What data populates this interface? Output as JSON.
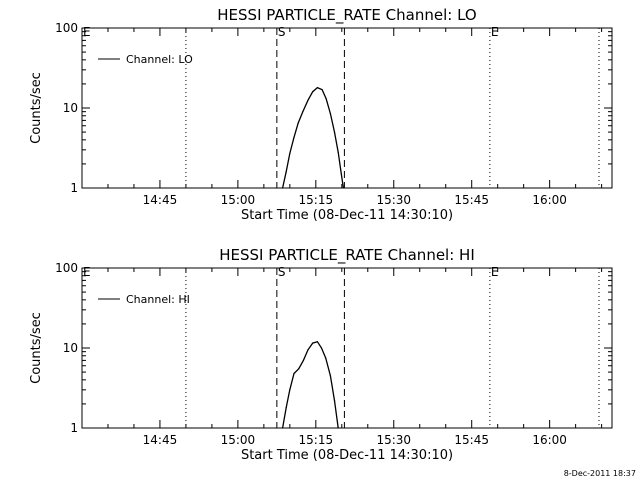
{
  "footer": {
    "timestamp": "8-Dec-2011 18:37"
  },
  "chart_data": [
    {
      "type": "line",
      "title": "HESSI PARTICLE_RATE Channel: LO",
      "xlabel": "Start Time (08-Dec-11 14:30:10)",
      "ylabel": "Counts/sec",
      "yscale": "log",
      "ylim": [
        1,
        100
      ],
      "ytick_labels": [
        "1",
        "10",
        "100"
      ],
      "ytick_values": [
        1,
        10,
        100
      ],
      "xlim_minutes": [
        0,
        102
      ],
      "xtick_labels": [
        "14:45",
        "15:00",
        "15:15",
        "15:30",
        "15:45",
        "16:00"
      ],
      "xtick_minutes": [
        15,
        30,
        45,
        60,
        75,
        90
      ],
      "legend": {
        "position": "top-left",
        "label": "Channel: LO"
      },
      "series": [
        {
          "name": "Channel: LO",
          "x_minutes": [
            38.6,
            39.3,
            40.0,
            40.8,
            41.6,
            42.5,
            43.5,
            44.4,
            45.3,
            46.2,
            47.0,
            47.8,
            48.6,
            49.3,
            49.9,
            50.3
          ],
          "y": [
            1.0,
            1.6,
            2.7,
            4.3,
            6.5,
            9.0,
            12.5,
            16.0,
            18.0,
            17.0,
            13.0,
            8.5,
            5.0,
            2.8,
            1.5,
            1.0
          ]
        }
      ],
      "annotations": [
        {
          "label": "E",
          "x_minutes": 0,
          "style": "none"
        },
        {
          "label": "",
          "x_minutes": 20,
          "style": "dotted"
        },
        {
          "label": "S",
          "x_minutes": 37.5,
          "style": "dashed"
        },
        {
          "label": "",
          "x_minutes": 50.5,
          "style": "dashed"
        },
        {
          "label": "E",
          "x_minutes": 78.5,
          "style": "dotted"
        },
        {
          "label": "",
          "x_minutes": 99.5,
          "style": "dotted"
        }
      ]
    },
    {
      "type": "line",
      "title": "HESSI PARTICLE_RATE Channel: HI",
      "xlabel": "Start Time (08-Dec-11 14:30:10)",
      "ylabel": "Counts/sec",
      "yscale": "log",
      "ylim": [
        1,
        100
      ],
      "ytick_labels": [
        "1",
        "10",
        "100"
      ],
      "ytick_values": [
        1,
        10,
        100
      ],
      "xlim_minutes": [
        0,
        102
      ],
      "xtick_labels": [
        "14:45",
        "15:00",
        "15:15",
        "15:30",
        "15:45",
        "16:00"
      ],
      "xtick_minutes": [
        15,
        30,
        45,
        60,
        75,
        90
      ],
      "legend": {
        "position": "top-left",
        "label": "Channel: HI"
      },
      "series": [
        {
          "name": "Channel: HI",
          "x_minutes": [
            38.6,
            39.3,
            40.0,
            40.8,
            41.7,
            42.6,
            43.5,
            44.4,
            45.3,
            46.1,
            46.9,
            47.8,
            48.6,
            49.3
          ],
          "y": [
            1.0,
            1.8,
            3.0,
            4.8,
            5.5,
            7.0,
            9.5,
            11.5,
            12.0,
            10.0,
            7.5,
            4.5,
            2.2,
            1.0
          ]
        }
      ],
      "annotations": [
        {
          "label": "E",
          "x_minutes": 0,
          "style": "none"
        },
        {
          "label": "",
          "x_minutes": 20,
          "style": "dotted"
        },
        {
          "label": "S",
          "x_minutes": 37.5,
          "style": "dashed"
        },
        {
          "label": "",
          "x_minutes": 50.5,
          "style": "dashed"
        },
        {
          "label": "E",
          "x_minutes": 78.5,
          "style": "dotted"
        },
        {
          "label": "",
          "x_minutes": 99.5,
          "style": "dotted"
        }
      ]
    }
  ]
}
